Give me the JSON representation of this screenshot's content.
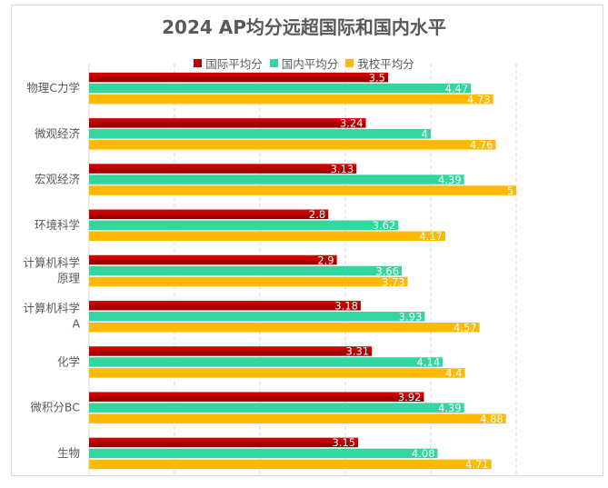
{
  "chart_data": {
    "type": "bar",
    "orientation": "horizontal",
    "title": "2024 AP均分远超国际和国内水平",
    "categories": [
      "物理C力学",
      "微观经济",
      "宏观经济",
      "环境科学",
      "计算机科学原理",
      "计算机科学A",
      "化学",
      "微积分BC",
      "生物"
    ],
    "series": [
      {
        "name": "国际平均分",
        "color": "#c00000",
        "values": [
          3.5,
          3.24,
          3.13,
          2.8,
          2.9,
          3.18,
          3.31,
          3.92,
          3.15
        ]
      },
      {
        "name": "国内平均分",
        "color": "#33d69f",
        "values": [
          4.47,
          4,
          4.39,
          3.62,
          3.66,
          3.93,
          4.14,
          4.39,
          4.08
        ]
      },
      {
        "name": "我校平均分",
        "color": "#ffb900",
        "values": [
          4.73,
          4.76,
          5,
          4.17,
          3.73,
          4.57,
          4.4,
          4.88,
          4.71
        ]
      }
    ],
    "xlim": [
      0,
      5
    ],
    "grid": true,
    "legend": "top",
    "data_labels": true
  }
}
